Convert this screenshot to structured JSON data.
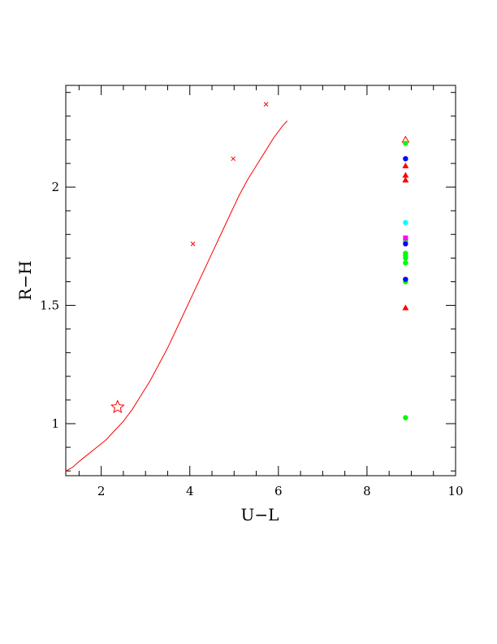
{
  "chart_data": {
    "type": "scatter",
    "title": "",
    "xlabel": "U−L",
    "ylabel": "R−H",
    "xlim": [
      1.2,
      10.0
    ],
    "ylim": [
      0.78,
      2.43
    ],
    "x_ticks": [
      2,
      4,
      6,
      8,
      10
    ],
    "x_tick_labels": [
      "2",
      "4",
      "6",
      "8",
      "10"
    ],
    "y_ticks": [
      1,
      1.5,
      2
    ],
    "y_tick_labels": [
      "1",
      "1.5",
      "2"
    ],
    "x_minor_step": 0.5,
    "y_minor_step": 0.1,
    "grid": false,
    "legend": "none",
    "curve": {
      "color": "#ff0000",
      "x": [
        1.2,
        1.35,
        1.5,
        1.7,
        1.9,
        2.1,
        2.3,
        2.5,
        2.7,
        2.9,
        3.1,
        3.3,
        3.5,
        3.7,
        3.9,
        4.1,
        4.3,
        4.5,
        4.7,
        4.9,
        5.1,
        5.3,
        5.5,
        5.7,
        5.9,
        6.1,
        6.2
      ],
      "y": [
        0.8,
        0.815,
        0.84,
        0.87,
        0.9,
        0.93,
        0.97,
        1.01,
        1.06,
        1.12,
        1.18,
        1.25,
        1.32,
        1.4,
        1.48,
        1.56,
        1.64,
        1.72,
        1.8,
        1.88,
        1.96,
        2.03,
        2.09,
        2.15,
        2.21,
        2.26,
        2.28
      ]
    },
    "curve_markers": {
      "color": "#ff0000",
      "x": [
        4.07,
        4.98,
        5.72
      ],
      "y": [
        1.76,
        2.12,
        2.35
      ]
    },
    "star": {
      "x": 2.37,
      "y": 1.07,
      "color": "#ff0000"
    },
    "series": [
      {
        "marker": "triangle-open",
        "color": "#ff0000",
        "x": [
          8.87
        ],
        "y": [
          2.2
        ]
      },
      {
        "marker": "triangle",
        "color": "#ff0000",
        "x": [
          8.87,
          8.87,
          8.87,
          8.87
        ],
        "y": [
          2.09,
          2.05,
          2.03,
          1.49
        ]
      },
      {
        "marker": "circle",
        "color": "#00ff00",
        "x": [
          8.87,
          8.87,
          8.87,
          8.87,
          8.87,
          8.87,
          8.87,
          8.87
        ],
        "y": [
          2.185,
          1.72,
          1.7,
          1.68,
          1.6,
          1.77,
          1.71,
          1.025
        ]
      },
      {
        "marker": "circle",
        "color": "#0000ff",
        "x": [
          8.87,
          8.87,
          8.87
        ],
        "y": [
          2.12,
          1.76,
          1.61
        ]
      },
      {
        "marker": "circle",
        "color": "#00ffff",
        "x": [
          8.87
        ],
        "y": [
          1.85
        ]
      },
      {
        "marker": "square",
        "color": "#ff00ff",
        "x": [
          8.87
        ],
        "y": [
          1.785
        ]
      }
    ]
  }
}
